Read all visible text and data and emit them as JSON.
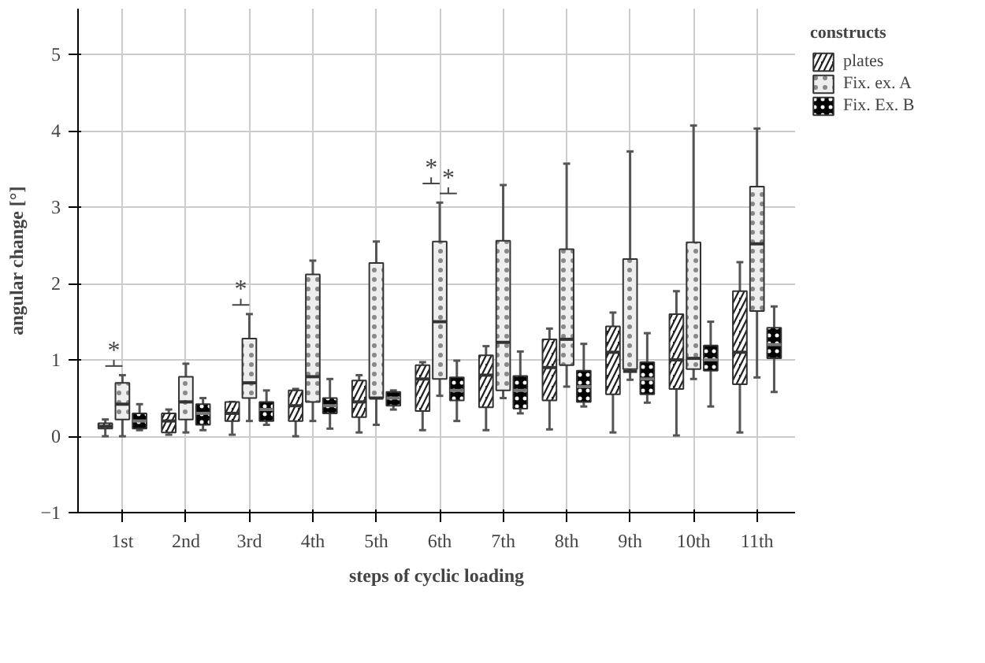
{
  "chart_data": {
    "type": "box",
    "xlabel": "steps of cyclic loading",
    "ylabel": "angular change [°]",
    "legend_title": "constructs",
    "legend": "top right",
    "grid": true,
    "categories": [
      "1st",
      "2nd",
      "3rd",
      "4th",
      "5th",
      "6th",
      "7th",
      "8th",
      "9th",
      "10th",
      "11th"
    ],
    "ylim": [
      -1,
      5.6
    ],
    "yticks": [
      -1,
      0,
      1,
      2,
      3,
      4,
      5
    ],
    "series": [
      {
        "name": "plates",
        "color": "#222222",
        "boxes": [
          {
            "low": 0,
            "q1": 0.1,
            "median": 0.13,
            "q3": 0.17,
            "high": 0.22
          },
          {
            "low": 0.02,
            "q1": 0.05,
            "median": 0.2,
            "q3": 0.3,
            "high": 0.35
          },
          {
            "low": 0.02,
            "q1": 0.2,
            "median": 0.3,
            "q3": 0.45,
            "high": 0.45
          },
          {
            "low": 0,
            "q1": 0.2,
            "median": 0.4,
            "q3": 0.6,
            "high": 0.62
          },
          {
            "low": 0.05,
            "q1": 0.25,
            "median": 0.45,
            "q3": 0.73,
            "high": 0.8
          },
          {
            "low": 0.08,
            "q1": 0.33,
            "median": 0.75,
            "q3": 0.93,
            "high": 0.97
          },
          {
            "low": 0.08,
            "q1": 0.38,
            "median": 0.8,
            "q3": 1.06,
            "high": 1.18
          },
          {
            "low": 0.09,
            "q1": 0.47,
            "median": 0.9,
            "q3": 1.27,
            "high": 1.41
          },
          {
            "low": 0.05,
            "q1": 0.55,
            "median": 1.1,
            "q3": 1.44,
            "high": 1.62
          },
          {
            "low": 0.01,
            "q1": 0.62,
            "median": 1.0,
            "q3": 1.6,
            "high": 1.9
          },
          {
            "low": 0.05,
            "q1": 0.68,
            "median": 1.1,
            "q3": 1.9,
            "high": 2.28
          }
        ]
      },
      {
        "name": "Fix. ex. A",
        "color": "#eeeeee",
        "boxes": [
          {
            "low": 0,
            "q1": 0.22,
            "median": 0.42,
            "q3": 0.7,
            "high": 0.8
          },
          {
            "low": 0.05,
            "q1": 0.22,
            "median": 0.45,
            "q3": 0.78,
            "high": 0.95
          },
          {
            "low": 0.2,
            "q1": 0.5,
            "median": 0.7,
            "q3": 1.28,
            "high": 1.6
          },
          {
            "low": 0.2,
            "q1": 0.45,
            "median": 0.78,
            "q3": 2.12,
            "high": 2.3
          },
          {
            "low": 0.15,
            "q1": 0.5,
            "median": 0.5,
            "q3": 2.27,
            "high": 2.55
          },
          {
            "low": 0.53,
            "q1": 0.75,
            "median": 1.5,
            "q3": 2.55,
            "high": 3.06
          },
          {
            "low": 0.5,
            "q1": 0.6,
            "median": 1.23,
            "q3": 2.56,
            "high": 3.29
          },
          {
            "low": 0.65,
            "q1": 0.93,
            "median": 1.27,
            "q3": 2.45,
            "high": 3.57
          },
          {
            "low": 0.74,
            "q1": 0.88,
            "median": 0.85,
            "q3": 2.32,
            "high": 3.73
          },
          {
            "low": 0.75,
            "q1": 0.88,
            "median": 1.02,
            "q3": 2.54,
            "high": 4.07
          },
          {
            "low": 0.77,
            "q1": 1.64,
            "median": 2.52,
            "q3": 3.27,
            "high": 4.03
          }
        ]
      },
      {
        "name": "Fix. Ex. B",
        "color": "#000000",
        "boxes": [
          {
            "low": 0.08,
            "q1": 0.1,
            "median": 0.2,
            "q3": 0.3,
            "high": 0.42
          },
          {
            "low": 0.08,
            "q1": 0.15,
            "median": 0.3,
            "q3": 0.42,
            "high": 0.5
          },
          {
            "low": 0.15,
            "q1": 0.2,
            "median": 0.35,
            "q3": 0.45,
            "high": 0.6
          },
          {
            "low": 0.1,
            "q1": 0.3,
            "median": 0.4,
            "q3": 0.5,
            "high": 0.75
          },
          {
            "low": 0.35,
            "q1": 0.4,
            "median": 0.5,
            "q3": 0.58,
            "high": 0.6
          },
          {
            "low": 0.2,
            "q1": 0.47,
            "median": 0.6,
            "q3": 0.77,
            "high": 0.99
          },
          {
            "low": 0.3,
            "q1": 0.36,
            "median": 0.6,
            "q3": 0.79,
            "high": 1.11
          },
          {
            "low": 0.39,
            "q1": 0.45,
            "median": 0.65,
            "q3": 0.86,
            "high": 1.21
          },
          {
            "low": 0.44,
            "q1": 0.55,
            "median": 0.75,
            "q3": 0.97,
            "high": 1.35
          },
          {
            "low": 0.39,
            "q1": 0.86,
            "median": 1.0,
            "q3": 1.19,
            "high": 1.5
          },
          {
            "low": 0.58,
            "q1": 1.02,
            "median": 1.2,
            "q3": 1.42,
            "high": 1.7
          }
        ]
      }
    ],
    "annotations": [
      {
        "text": "*",
        "x": "1st",
        "y": 0.8
      },
      {
        "text": "*",
        "x": "3rd",
        "y": 1.6
      },
      {
        "text": "*",
        "x": "6th",
        "y": 3.06
      },
      {
        "text": "*",
        "x": "6th",
        "y": 3.06
      }
    ]
  }
}
